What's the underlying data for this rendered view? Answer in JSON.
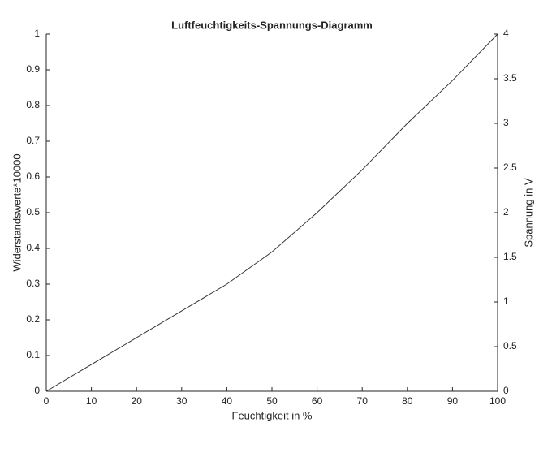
{
  "chart_data": {
    "type": "line",
    "title": "Luftfeuchtigkeits-Spannungs-Diagramm",
    "xlabel": "Feuchtigkeit in %",
    "ylabel": "Widerstandswerte*10000",
    "y2label": "Spannung in V",
    "x": [
      0,
      40,
      50,
      60,
      70,
      80,
      90,
      100
    ],
    "series": [
      {
        "color": "#333333",
        "values": [
          0,
          0.3,
          0.39,
          0.5,
          0.62,
          0.75,
          0.87,
          1
        ]
      }
    ],
    "xlim": [
      0,
      100
    ],
    "xticks": [
      0,
      10,
      20,
      30,
      40,
      50,
      60,
      70,
      80,
      90,
      100
    ],
    "ylim": [
      0,
      1
    ],
    "yticks": [
      0,
      0.1,
      0.2,
      0.3,
      0.4,
      0.5,
      0.6,
      0.7,
      0.8,
      0.9,
      1
    ],
    "y2lim": [
      0,
      4
    ],
    "y2ticks": [
      0,
      0.5,
      1,
      1.5,
      2,
      2.5,
      3,
      3.5,
      4
    ],
    "grid": false
  }
}
